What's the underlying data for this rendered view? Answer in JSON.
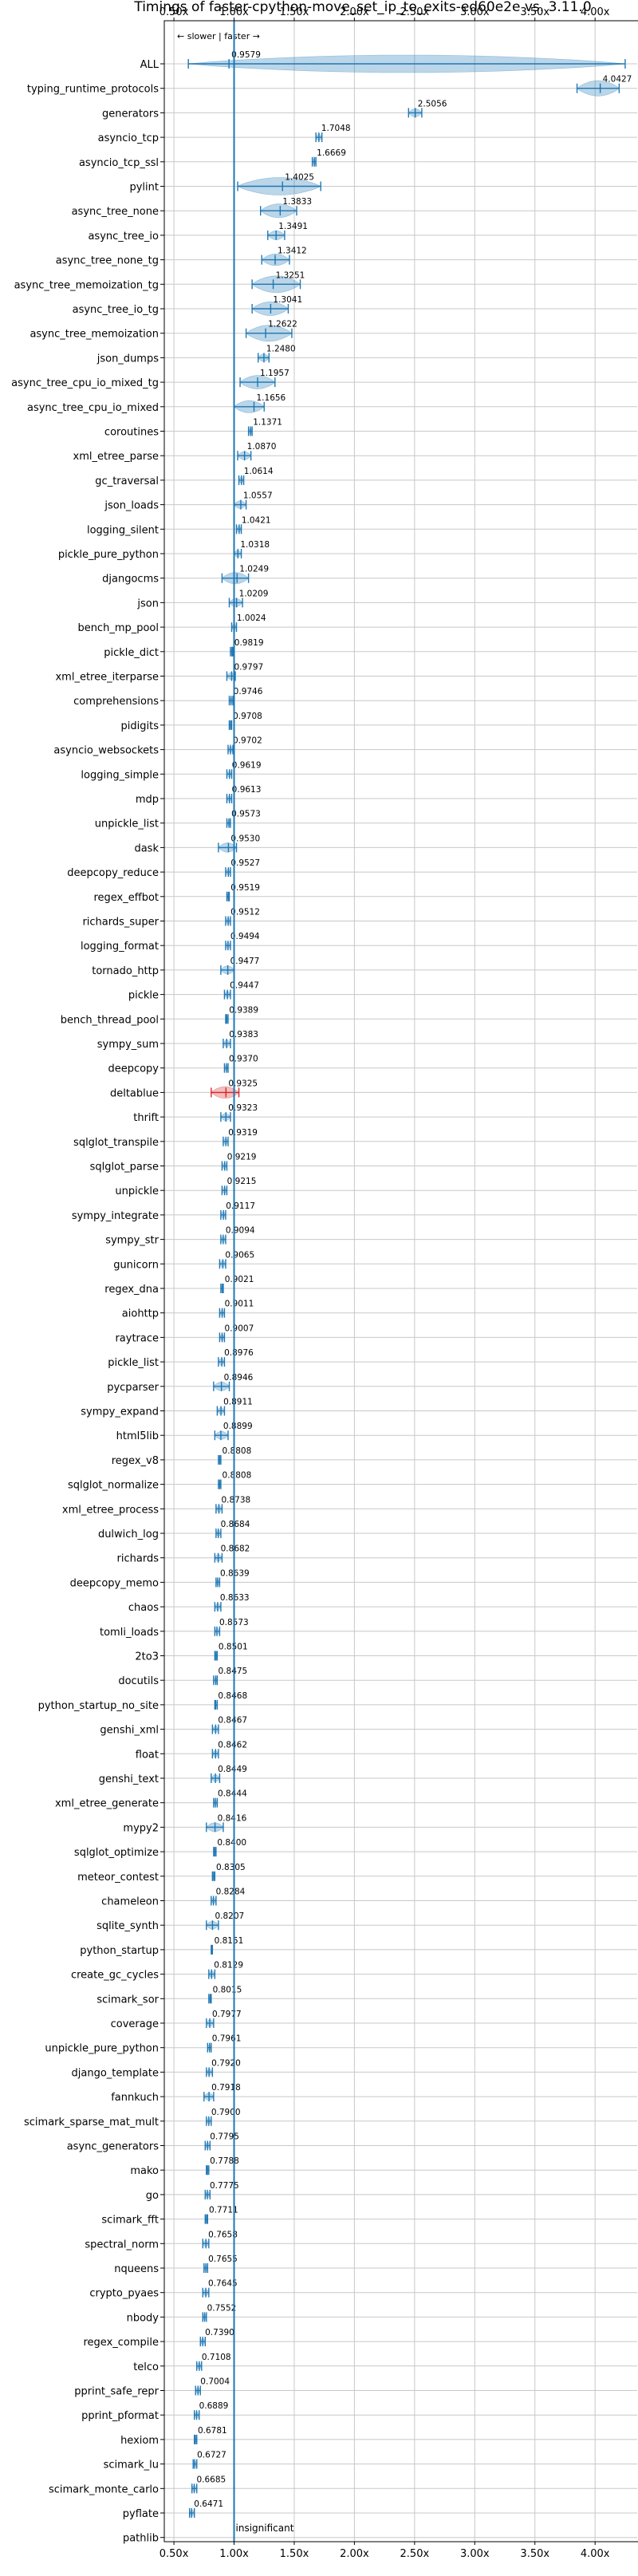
{
  "chart_data": {
    "type": "violin",
    "title": "Timings of faster-cpython-move_set_ip_to_exits-ed60e2e vs. 3.11.0",
    "direction_note": "← slower | faster →",
    "reference_label": "insignificant",
    "reference_value": 1.0,
    "xlim": [
      0.42,
      4.35
    ],
    "xticks": [
      0.5,
      1.0,
      1.5,
      2.0,
      2.5,
      3.0,
      3.5,
      4.0
    ],
    "xtick_labels": [
      "0.50x",
      "1.00x",
      "1.50x",
      "2.00x",
      "2.50x",
      "3.00x",
      "3.50x",
      "4.00x"
    ],
    "grid": true,
    "accent_color": "#1f77b4",
    "regression_color": "#d62728",
    "benchmarks": [
      {
        "name": "ALL",
        "value": 0.9579,
        "value_label": "0.9579",
        "low": 0.62,
        "high": 4.25,
        "regression": false
      },
      {
        "name": "typing_runtime_protocols",
        "value": 4.0427,
        "value_label": "4.0427",
        "low": 3.85,
        "high": 4.2,
        "regression": false
      },
      {
        "name": "generators",
        "value": 2.5056,
        "value_label": "2.5056",
        "low": 2.45,
        "high": 2.56,
        "regression": false
      },
      {
        "name": "asyncio_tcp",
        "value": 1.7048,
        "value_label": "1.7048",
        "low": 1.68,
        "high": 1.73,
        "regression": false
      },
      {
        "name": "asyncio_tcp_ssl",
        "value": 1.6669,
        "value_label": "1.6669",
        "low": 1.65,
        "high": 1.68,
        "regression": false
      },
      {
        "name": "pylint",
        "value": 1.4025,
        "value_label": "1.4025",
        "low": 1.03,
        "high": 1.72,
        "regression": false
      },
      {
        "name": "async_tree_none",
        "value": 1.3833,
        "value_label": "1.3833",
        "low": 1.22,
        "high": 1.52,
        "regression": false
      },
      {
        "name": "async_tree_io",
        "value": 1.3491,
        "value_label": "1.3491",
        "low": 1.28,
        "high": 1.42,
        "regression": false
      },
      {
        "name": "async_tree_none_tg",
        "value": 1.3412,
        "value_label": "1.3412",
        "low": 1.23,
        "high": 1.46,
        "regression": false
      },
      {
        "name": "async_tree_memoization_tg",
        "value": 1.3251,
        "value_label": "1.3251",
        "low": 1.15,
        "high": 1.55,
        "regression": false
      },
      {
        "name": "async_tree_io_tg",
        "value": 1.3041,
        "value_label": "1.3041",
        "low": 1.15,
        "high": 1.45,
        "regression": false
      },
      {
        "name": "async_tree_memoization",
        "value": 1.2622,
        "value_label": "1.2622",
        "low": 1.1,
        "high": 1.48,
        "regression": false
      },
      {
        "name": "json_dumps",
        "value": 1.248,
        "value_label": "1.2480",
        "low": 1.2,
        "high": 1.29,
        "regression": false
      },
      {
        "name": "async_tree_cpu_io_mixed_tg",
        "value": 1.1957,
        "value_label": "1.1957",
        "low": 1.05,
        "high": 1.34,
        "regression": false
      },
      {
        "name": "async_tree_cpu_io_mixed",
        "value": 1.1656,
        "value_label": "1.1656",
        "low": 1.0,
        "high": 1.25,
        "regression": false
      },
      {
        "name": "coroutines",
        "value": 1.1371,
        "value_label": "1.1371",
        "low": 1.12,
        "high": 1.15,
        "regression": false
      },
      {
        "name": "xml_etree_parse",
        "value": 1.087,
        "value_label": "1.0870",
        "low": 1.03,
        "high": 1.14,
        "regression": false
      },
      {
        "name": "gc_traversal",
        "value": 1.0614,
        "value_label": "1.0614",
        "low": 1.04,
        "high": 1.08,
        "regression": false
      },
      {
        "name": "json_loads",
        "value": 1.0557,
        "value_label": "1.0557",
        "low": 1.0,
        "high": 1.1,
        "regression": false
      },
      {
        "name": "logging_silent",
        "value": 1.0421,
        "value_label": "1.0421",
        "low": 1.02,
        "high": 1.06,
        "regression": false
      },
      {
        "name": "pickle_pure_python",
        "value": 1.0318,
        "value_label": "1.0318",
        "low": 1.0,
        "high": 1.06,
        "regression": false
      },
      {
        "name": "djangocms",
        "value": 1.0249,
        "value_label": "1.0249",
        "low": 0.9,
        "high": 1.12,
        "regression": false
      },
      {
        "name": "json",
        "value": 1.0209,
        "value_label": "1.0209",
        "low": 0.96,
        "high": 1.07,
        "regression": false
      },
      {
        "name": "bench_mp_pool",
        "value": 1.0024,
        "value_label": "1.0024",
        "low": 0.98,
        "high": 1.02,
        "regression": false
      },
      {
        "name": "pickle_dict",
        "value": 0.9819,
        "value_label": "0.9819",
        "low": 0.97,
        "high": 0.99,
        "regression": false
      },
      {
        "name": "xml_etree_iterparse",
        "value": 0.9797,
        "value_label": "0.9797",
        "low": 0.94,
        "high": 1.01,
        "regression": false
      },
      {
        "name": "comprehensions",
        "value": 0.9746,
        "value_label": "0.9746",
        "low": 0.96,
        "high": 0.99,
        "regression": false
      },
      {
        "name": "pidigits",
        "value": 0.9708,
        "value_label": "0.9708",
        "low": 0.96,
        "high": 0.98,
        "regression": false
      },
      {
        "name": "asyncio_websockets",
        "value": 0.9702,
        "value_label": "0.9702",
        "low": 0.95,
        "high": 0.99,
        "regression": false
      },
      {
        "name": "logging_simple",
        "value": 0.9619,
        "value_label": "0.9619",
        "low": 0.94,
        "high": 0.98,
        "regression": false
      },
      {
        "name": "mdp",
        "value": 0.9613,
        "value_label": "0.9613",
        "low": 0.94,
        "high": 0.98,
        "regression": false
      },
      {
        "name": "unpickle_list",
        "value": 0.9573,
        "value_label": "0.9573",
        "low": 0.94,
        "high": 0.97,
        "regression": false
      },
      {
        "name": "dask",
        "value": 0.953,
        "value_label": "0.9530",
        "low": 0.87,
        "high": 1.02,
        "regression": false
      },
      {
        "name": "deepcopy_reduce",
        "value": 0.9527,
        "value_label": "0.9527",
        "low": 0.93,
        "high": 0.97,
        "regression": false
      },
      {
        "name": "regex_effbot",
        "value": 0.9519,
        "value_label": "0.9519",
        "low": 0.94,
        "high": 0.96,
        "regression": false
      },
      {
        "name": "richards_super",
        "value": 0.9512,
        "value_label": "0.9512",
        "low": 0.93,
        "high": 0.97,
        "regression": false
      },
      {
        "name": "logging_format",
        "value": 0.9494,
        "value_label": "0.9494",
        "low": 0.93,
        "high": 0.97,
        "regression": false
      },
      {
        "name": "tornado_http",
        "value": 0.9477,
        "value_label": "0.9477",
        "low": 0.89,
        "high": 1.0,
        "regression": false
      },
      {
        "name": "pickle",
        "value": 0.9447,
        "value_label": "0.9447",
        "low": 0.92,
        "high": 0.97,
        "regression": false
      },
      {
        "name": "bench_thread_pool",
        "value": 0.9389,
        "value_label": "0.9389",
        "low": 0.93,
        "high": 0.95,
        "regression": false
      },
      {
        "name": "sympy_sum",
        "value": 0.9383,
        "value_label": "0.9383",
        "low": 0.91,
        "high": 0.97,
        "regression": false
      },
      {
        "name": "deepcopy",
        "value": 0.937,
        "value_label": "0.9370",
        "low": 0.92,
        "high": 0.95,
        "regression": false
      },
      {
        "name": "deltablue",
        "value": 0.9325,
        "value_label": "0.9325",
        "low": 0.81,
        "high": 1.04,
        "regression": true
      },
      {
        "name": "thrift",
        "value": 0.9323,
        "value_label": "0.9323",
        "low": 0.89,
        "high": 0.97,
        "regression": false
      },
      {
        "name": "sqlglot_transpile",
        "value": 0.9319,
        "value_label": "0.9319",
        "low": 0.91,
        "high": 0.95,
        "regression": false
      },
      {
        "name": "sqlglot_parse",
        "value": 0.9219,
        "value_label": "0.9219",
        "low": 0.9,
        "high": 0.94,
        "regression": false
      },
      {
        "name": "unpickle",
        "value": 0.9215,
        "value_label": "0.9215",
        "low": 0.9,
        "high": 0.94,
        "regression": false
      },
      {
        "name": "sympy_integrate",
        "value": 0.9117,
        "value_label": "0.9117",
        "low": 0.89,
        "high": 0.93,
        "regression": false
      },
      {
        "name": "sympy_str",
        "value": 0.9094,
        "value_label": "0.9094",
        "low": 0.89,
        "high": 0.93,
        "regression": false
      },
      {
        "name": "gunicorn",
        "value": 0.9065,
        "value_label": "0.9065",
        "low": 0.88,
        "high": 0.93,
        "regression": false
      },
      {
        "name": "regex_dna",
        "value": 0.9021,
        "value_label": "0.9021",
        "low": 0.89,
        "high": 0.91,
        "regression": false
      },
      {
        "name": "aiohttp",
        "value": 0.9011,
        "value_label": "0.9011",
        "low": 0.88,
        "high": 0.92,
        "regression": false
      },
      {
        "name": "raytrace",
        "value": 0.9007,
        "value_label": "0.9007",
        "low": 0.88,
        "high": 0.92,
        "regression": false
      },
      {
        "name": "pickle_list",
        "value": 0.8976,
        "value_label": "0.8976",
        "low": 0.87,
        "high": 0.92,
        "regression": false
      },
      {
        "name": "pycparser",
        "value": 0.8946,
        "value_label": "0.8946",
        "low": 0.83,
        "high": 0.96,
        "regression": false
      },
      {
        "name": "sympy_expand",
        "value": 0.8911,
        "value_label": "0.8911",
        "low": 0.86,
        "high": 0.92,
        "regression": false
      },
      {
        "name": "html5lib",
        "value": 0.8899,
        "value_label": "0.8899",
        "low": 0.84,
        "high": 0.95,
        "regression": false
      },
      {
        "name": "regex_v8",
        "value": 0.8808,
        "value_label": "0.8808",
        "low": 0.87,
        "high": 0.89,
        "regression": false
      },
      {
        "name": "sqlglot_normalize",
        "value": 0.8808,
        "value_label": "0.8808",
        "low": 0.87,
        "high": 0.89,
        "regression": false
      },
      {
        "name": "xml_etree_process",
        "value": 0.8738,
        "value_label": "0.8738",
        "low": 0.85,
        "high": 0.9,
        "regression": false
      },
      {
        "name": "dulwich_log",
        "value": 0.8684,
        "value_label": "0.8684",
        "low": 0.85,
        "high": 0.89,
        "regression": false
      },
      {
        "name": "richards",
        "value": 0.8682,
        "value_label": "0.8682",
        "low": 0.84,
        "high": 0.9,
        "regression": false
      },
      {
        "name": "deepcopy_memo",
        "value": 0.8639,
        "value_label": "0.8639",
        "low": 0.85,
        "high": 0.88,
        "regression": false
      },
      {
        "name": "chaos",
        "value": 0.8633,
        "value_label": "0.8633",
        "low": 0.84,
        "high": 0.89,
        "regression": false
      },
      {
        "name": "tomli_loads",
        "value": 0.8573,
        "value_label": "0.8573",
        "low": 0.84,
        "high": 0.88,
        "regression": false
      },
      {
        "name": "2to3",
        "value": 0.8501,
        "value_label": "0.8501",
        "low": 0.84,
        "high": 0.86,
        "regression": false
      },
      {
        "name": "docutils",
        "value": 0.8475,
        "value_label": "0.8475",
        "low": 0.83,
        "high": 0.86,
        "regression": false
      },
      {
        "name": "python_startup_no_site",
        "value": 0.8468,
        "value_label": "0.8468",
        "low": 0.84,
        "high": 0.86,
        "regression": false
      },
      {
        "name": "genshi_xml",
        "value": 0.8467,
        "value_label": "0.8467",
        "low": 0.82,
        "high": 0.87,
        "regression": false
      },
      {
        "name": "float",
        "value": 0.8462,
        "value_label": "0.8462",
        "low": 0.82,
        "high": 0.87,
        "regression": false
      },
      {
        "name": "genshi_text",
        "value": 0.8449,
        "value_label": "0.8449",
        "low": 0.81,
        "high": 0.88,
        "regression": false
      },
      {
        "name": "xml_etree_generate",
        "value": 0.8444,
        "value_label": "0.8444",
        "low": 0.83,
        "high": 0.86,
        "regression": false
      },
      {
        "name": "mypy2",
        "value": 0.8416,
        "value_label": "0.8416",
        "low": 0.77,
        "high": 0.91,
        "regression": false
      },
      {
        "name": "sqlglot_optimize",
        "value": 0.84,
        "value_label": "0.8400",
        "low": 0.83,
        "high": 0.85,
        "regression": false
      },
      {
        "name": "meteor_contest",
        "value": 0.8305,
        "value_label": "0.8305",
        "low": 0.82,
        "high": 0.84,
        "regression": false
      },
      {
        "name": "chameleon",
        "value": 0.8284,
        "value_label": "0.8284",
        "low": 0.81,
        "high": 0.85,
        "regression": false
      },
      {
        "name": "sqlite_synth",
        "value": 0.8207,
        "value_label": "0.8207",
        "low": 0.77,
        "high": 0.87,
        "regression": false
      },
      {
        "name": "python_startup",
        "value": 0.8151,
        "value_label": "0.8151",
        "low": 0.81,
        "high": 0.82,
        "regression": false
      },
      {
        "name": "create_gc_cycles",
        "value": 0.8129,
        "value_label": "0.8129",
        "low": 0.79,
        "high": 0.84,
        "regression": false
      },
      {
        "name": "scimark_sor",
        "value": 0.8015,
        "value_label": "0.8015",
        "low": 0.79,
        "high": 0.81,
        "regression": false
      },
      {
        "name": "coverage",
        "value": 0.7977,
        "value_label": "0.7977",
        "low": 0.77,
        "high": 0.83,
        "regression": false
      },
      {
        "name": "unpickle_pure_python",
        "value": 0.7961,
        "value_label": "0.7961",
        "low": 0.78,
        "high": 0.81,
        "regression": false
      },
      {
        "name": "django_template",
        "value": 0.792,
        "value_label": "0.7920",
        "low": 0.77,
        "high": 0.82,
        "regression": false
      },
      {
        "name": "fannkuch",
        "value": 0.7918,
        "value_label": "0.7918",
        "low": 0.75,
        "high": 0.83,
        "regression": false
      },
      {
        "name": "scimark_sparse_mat_mult",
        "value": 0.79,
        "value_label": "0.7900",
        "low": 0.77,
        "high": 0.81,
        "regression": false
      },
      {
        "name": "async_generators",
        "value": 0.7795,
        "value_label": "0.7795",
        "low": 0.76,
        "high": 0.8,
        "regression": false
      },
      {
        "name": "mako",
        "value": 0.7788,
        "value_label": "0.7788",
        "low": 0.77,
        "high": 0.79,
        "regression": false
      },
      {
        "name": "go",
        "value": 0.7775,
        "value_label": "0.7775",
        "low": 0.76,
        "high": 0.8,
        "regression": false
      },
      {
        "name": "scimark_fft",
        "value": 0.7711,
        "value_label": "0.7711",
        "low": 0.76,
        "high": 0.78,
        "regression": false
      },
      {
        "name": "spectral_norm",
        "value": 0.7658,
        "value_label": "0.7658",
        "low": 0.74,
        "high": 0.79,
        "regression": false
      },
      {
        "name": "nqueens",
        "value": 0.7655,
        "value_label": "0.7655",
        "low": 0.75,
        "high": 0.78,
        "regression": false
      },
      {
        "name": "crypto_pyaes",
        "value": 0.7645,
        "value_label": "0.7645",
        "low": 0.74,
        "high": 0.79,
        "regression": false
      },
      {
        "name": "nbody",
        "value": 0.7552,
        "value_label": "0.7552",
        "low": 0.74,
        "high": 0.77,
        "regression": false
      },
      {
        "name": "regex_compile",
        "value": 0.739,
        "value_label": "0.7390",
        "low": 0.72,
        "high": 0.76,
        "regression": false
      },
      {
        "name": "telco",
        "value": 0.7108,
        "value_label": "0.7108",
        "low": 0.69,
        "high": 0.73,
        "regression": false
      },
      {
        "name": "pprint_safe_repr",
        "value": 0.7004,
        "value_label": "0.7004",
        "low": 0.68,
        "high": 0.72,
        "regression": false
      },
      {
        "name": "pprint_pformat",
        "value": 0.6889,
        "value_label": "0.6889",
        "low": 0.67,
        "high": 0.71,
        "regression": false
      },
      {
        "name": "hexiom",
        "value": 0.6781,
        "value_label": "0.6781",
        "low": 0.67,
        "high": 0.69,
        "regression": false
      },
      {
        "name": "scimark_lu",
        "value": 0.6727,
        "value_label": "0.6727",
        "low": 0.66,
        "high": 0.69,
        "regression": false
      },
      {
        "name": "scimark_monte_carlo",
        "value": 0.6685,
        "value_label": "0.6685",
        "low": 0.65,
        "high": 0.69,
        "regression": false
      },
      {
        "name": "pyflate",
        "value": 0.6471,
        "value_label": "0.6471",
        "low": 0.63,
        "high": 0.67,
        "regression": false
      },
      {
        "name": "pathlib",
        "value": null,
        "value_label": "",
        "low": null,
        "high": null,
        "regression": false
      }
    ]
  }
}
